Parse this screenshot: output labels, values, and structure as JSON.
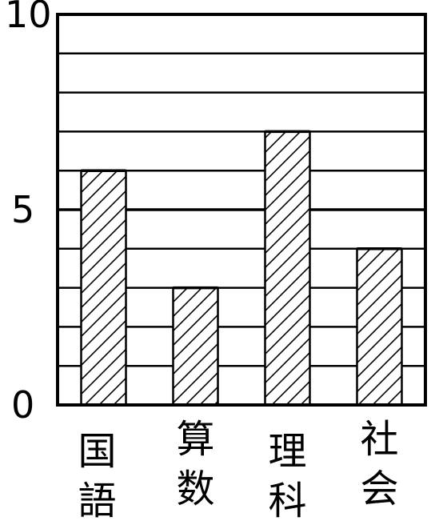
{
  "chart_data": {
    "type": "bar",
    "categories": [
      "国語",
      "算数",
      "理科",
      "社会"
    ],
    "values": [
      6,
      3,
      7,
      4
    ],
    "ylim": [
      0,
      10
    ],
    "yticks": [
      0,
      5,
      10
    ],
    "ytick_labels": [
      "0",
      "5",
      "10"
    ],
    "grid": true,
    "bar_fill": "hatched",
    "colors": {
      "ink": "#000000",
      "background": "#ffffff"
    }
  }
}
